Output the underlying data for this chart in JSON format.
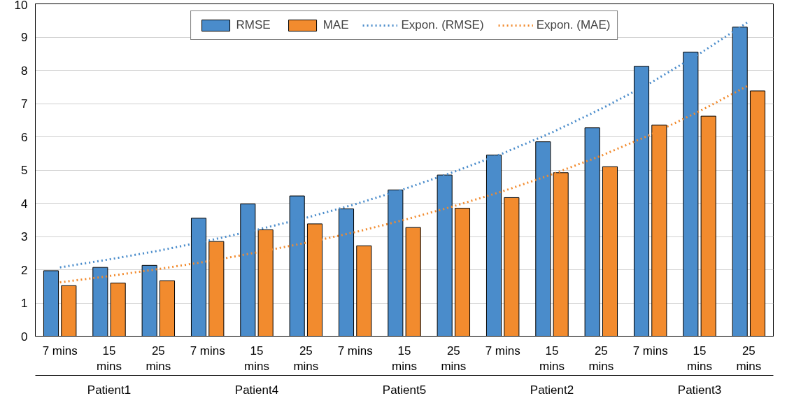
{
  "chart_data": {
    "type": "bar",
    "categories": [
      "7 mins",
      "15 mins",
      "25 mins",
      "7 mins",
      "15 mins",
      "25 mins",
      "7 mins",
      "15 mins",
      "25 mins",
      "7 mins",
      "15 mins",
      "25 mins",
      "7 mins",
      "15 mins",
      "25 mins"
    ],
    "series": [
      {
        "name": "RMSE",
        "color": "#4a8ccb",
        "values": [
          1.97,
          2.07,
          2.13,
          3.55,
          3.98,
          4.22,
          3.83,
          4.4,
          4.85,
          5.45,
          5.85,
          6.27,
          8.12,
          8.55,
          9.3
        ]
      },
      {
        "name": "MAE",
        "color": "#f28b2e",
        "values": [
          1.52,
          1.6,
          1.67,
          2.85,
          3.2,
          3.38,
          2.72,
          3.27,
          3.85,
          4.17,
          4.92,
          5.1,
          6.35,
          6.62,
          7.38
        ]
      },
      {
        "name": "Expon. (RMSE)",
        "type": "line",
        "line_style": "dotted",
        "color": "#4a8ccb",
        "values": [
          2.07,
          2.31,
          2.57,
          2.87,
          3.2,
          3.56,
          3.97,
          4.43,
          4.94,
          5.5,
          6.13,
          6.84,
          7.62,
          8.5,
          9.47
        ]
      },
      {
        "name": "Expon. (MAE)",
        "type": "line",
        "line_style": "dotted",
        "color": "#f28b2e",
        "values": [
          1.62,
          1.81,
          2.02,
          2.25,
          2.52,
          2.81,
          3.13,
          3.5,
          3.91,
          4.36,
          4.87,
          5.43,
          6.06,
          6.77,
          7.55
        ]
      }
    ],
    "annotations": [
      "Patient1",
      "Patient4",
      "Patient5",
      "Patient2",
      "Patient3"
    ],
    "ylim": [
      0,
      10
    ],
    "yticks": [
      0,
      1,
      2,
      3,
      4,
      5,
      6,
      7,
      8,
      9,
      10
    ],
    "grid": "y",
    "legend": "top"
  }
}
